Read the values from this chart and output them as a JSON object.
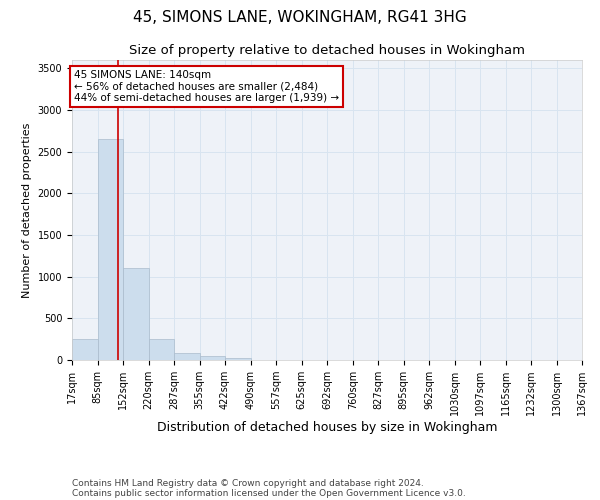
{
  "title": "45, SIMONS LANE, WOKINGHAM, RG41 3HG",
  "subtitle": "Size of property relative to detached houses in Wokingham",
  "xlabel": "Distribution of detached houses by size in Wokingham",
  "ylabel": "Number of detached properties",
  "annotation_line1": "45 SIMONS LANE: 140sqm",
  "annotation_line2": "← 56% of detached houses are smaller (2,484)",
  "annotation_line3": "44% of semi-detached houses are larger (1,939) →",
  "footnote1": "Contains HM Land Registry data © Crown copyright and database right 2024.",
  "footnote2": "Contains public sector information licensed under the Open Government Licence v3.0.",
  "property_size": 140,
  "bin_edges": [
    17,
    85,
    152,
    220,
    287,
    355,
    422,
    490,
    557,
    625,
    692,
    760,
    827,
    895,
    962,
    1030,
    1097,
    1165,
    1232,
    1300,
    1367
  ],
  "bar_heights": [
    250,
    2650,
    1100,
    255,
    80,
    45,
    30,
    5,
    3,
    2,
    1,
    1,
    1,
    0,
    0,
    0,
    0,
    0,
    0,
    0
  ],
  "bar_color": "#ccdded",
  "bar_edge_color": "#aabbcc",
  "grid_color": "#d8e4f0",
  "annotation_box_color": "#cc0000",
  "property_line_color": "#cc0000",
  "ylim": [
    0,
    3600
  ],
  "yticks": [
    0,
    500,
    1000,
    1500,
    2000,
    2500,
    3000,
    3500
  ],
  "bg_color": "#ffffff",
  "axes_bg_color": "#eef2f8",
  "title_fontsize": 11,
  "subtitle_fontsize": 9.5,
  "tick_fontsize": 7,
  "xlabel_fontsize": 9,
  "ylabel_fontsize": 8,
  "annotation_fontsize": 7.5,
  "footnote_fontsize": 6.5
}
